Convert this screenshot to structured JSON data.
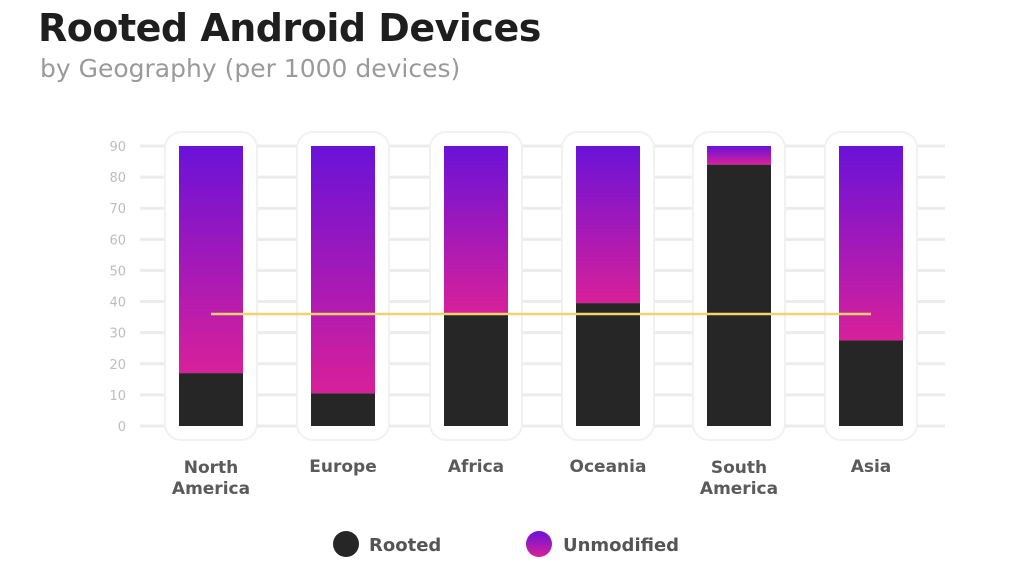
{
  "chart_data": {
    "type": "bar",
    "stacked": true,
    "title": "Rooted Android Devices",
    "subtitle": "by Geography (per 1000 devices)",
    "categories": [
      "North America",
      "Europe",
      "Africa",
      "Oceania",
      "South America",
      "Asia"
    ],
    "series": [
      {
        "name": "Rooted",
        "values": [
          17,
          10.5,
          36,
          39.5,
          84,
          27.5
        ],
        "color": "#262626"
      },
      {
        "name": "Unmodified",
        "values": [
          73,
          79.5,
          54,
          50.5,
          6,
          62.5
        ],
        "color_top": "#6a12d8",
        "color_bottom": "#d8209a"
      }
    ],
    "reference_line": {
      "value": 36,
      "color": "#f2d36b"
    },
    "yticks": [
      0,
      10,
      20,
      30,
      40,
      50,
      60,
      70,
      80,
      90
    ],
    "ylim": [
      0,
      90
    ],
    "grid": true,
    "legend_position": "bottom"
  }
}
